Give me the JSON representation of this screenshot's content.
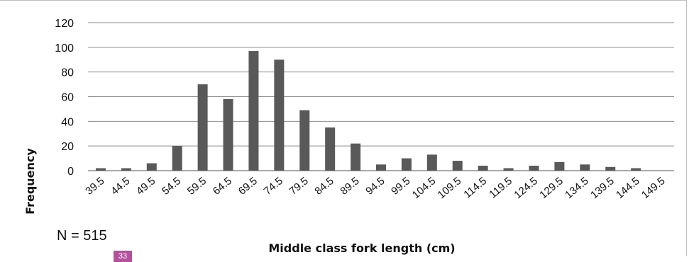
{
  "chart_data": {
    "type": "bar",
    "xlabel": "Middle class fork length (cm)",
    "ylabel": "Frequency",
    "ylim": [
      0,
      120
    ],
    "yticks": [
      "0",
      "20",
      "40",
      "60",
      "80",
      "100",
      "120"
    ],
    "grid": true,
    "bar_color": "#595959",
    "categories": [
      "39.5",
      "44.5",
      "49.5",
      "54.5",
      "59.5",
      "64.5",
      "69.5",
      "74.5",
      "79.5",
      "84.5",
      "89.5",
      "94.5",
      "99.5",
      "104.5",
      "109.5",
      "114.5",
      "119.5",
      "124.5",
      "129.5",
      "134.5",
      "139.5",
      "144.5",
      "149.5"
    ],
    "values": [
      2,
      2,
      6,
      20,
      70,
      58,
      97,
      90,
      49,
      35,
      22,
      5,
      10,
      13,
      8,
      4,
      2,
      4,
      7,
      5,
      3,
      2,
      0
    ]
  },
  "annotation": {
    "n_text": "N = 515"
  },
  "page_badge": "33"
}
